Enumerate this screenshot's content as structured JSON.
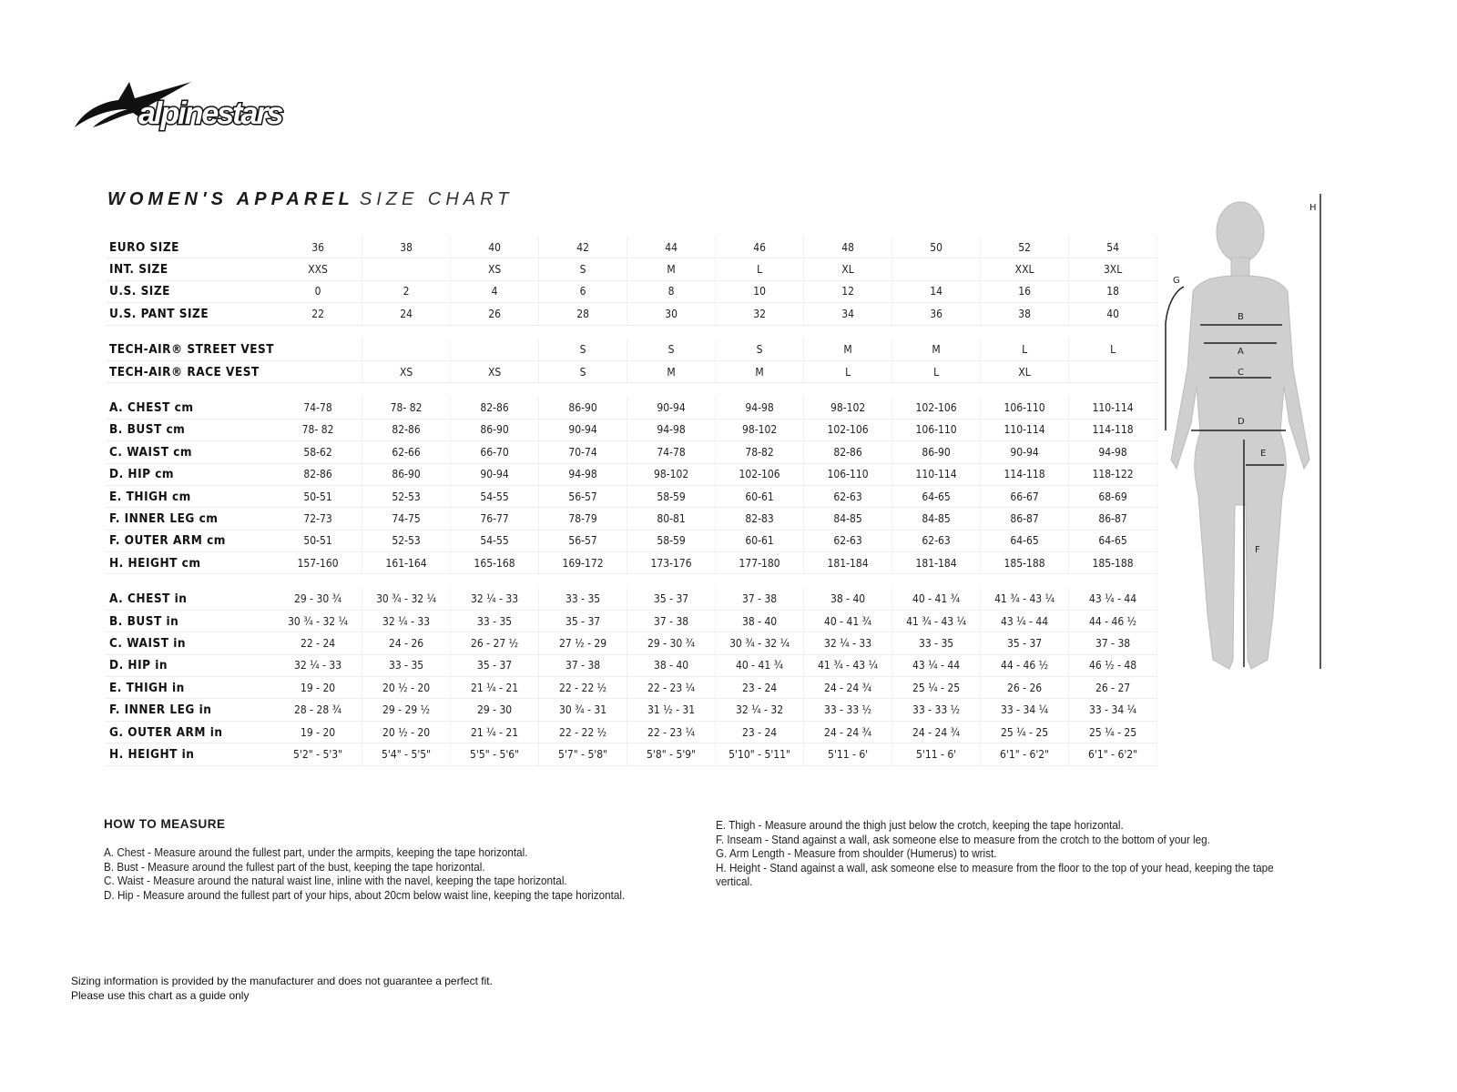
{
  "brand": "alpinestars",
  "title": {
    "bold": "WOMEN'S APPAREL",
    "light": "SIZE CHART"
  },
  "table": {
    "rows": [
      {
        "label": "EURO SIZE",
        "cells": [
          "36",
          "38",
          "40",
          "42",
          "44",
          "46",
          "48",
          "50",
          "52",
          "54"
        ]
      },
      {
        "label": "INT. SIZE",
        "cells": [
          "XXS",
          "",
          "XS",
          "S",
          "M",
          "L",
          "XL",
          "",
          "XXL",
          "3XL"
        ]
      },
      {
        "label": "U.S. SIZE",
        "cells": [
          "0",
          "2",
          "4",
          "6",
          "8",
          "10",
          "12",
          "14",
          "16",
          "18"
        ]
      },
      {
        "label": "U.S. PANT SIZE",
        "cells": [
          "22",
          "24",
          "26",
          "28",
          "30",
          "32",
          "34",
          "36",
          "38",
          "40"
        ]
      },
      null,
      {
        "label": "TECH-AIR® STREET VEST",
        "cells": [
          "",
          "",
          "",
          "S",
          "S",
          "S",
          "M",
          "M",
          "L",
          "L"
        ]
      },
      {
        "label": "TECH-AIR® RACE VEST",
        "cells": [
          "",
          "XS",
          "XS",
          "S",
          "M",
          "M",
          "L",
          "L",
          "XL",
          ""
        ]
      },
      null,
      {
        "label": "A. CHEST cm",
        "cells": [
          "74-78",
          "78- 82",
          "82-86",
          "86-90",
          "90-94",
          "94-98",
          "98-102",
          "102-106",
          "106-110",
          "110-114"
        ]
      },
      {
        "label": "B. BUST cm",
        "cells": [
          "78- 82",
          "82-86",
          "86-90",
          "90-94",
          "94-98",
          "98-102",
          "102-106",
          "106-110",
          "110-114",
          "114-118"
        ]
      },
      {
        "label": "C. WAIST cm",
        "cells": [
          "58-62",
          "62-66",
          "66-70",
          "70-74",
          "74-78",
          "78-82",
          "82-86",
          "86-90",
          "90-94",
          "94-98"
        ]
      },
      {
        "label": "D. HIP cm",
        "cells": [
          "82-86",
          "86-90",
          "90-94",
          "94-98",
          "98-102",
          "102-106",
          "106-110",
          "110-114",
          "114-118",
          "118-122"
        ]
      },
      {
        "label": "E. THIGH cm",
        "cells": [
          "50-51",
          "52-53",
          "54-55",
          "56-57",
          "58-59",
          "60-61",
          "62-63",
          "64-65",
          "66-67",
          "68-69"
        ]
      },
      {
        "label": "F. INNER LEG cm",
        "cells": [
          "72-73",
          "74-75",
          "76-77",
          "78-79",
          "80-81",
          "82-83",
          "84-85",
          "84-85",
          "86-87",
          "86-87"
        ]
      },
      {
        "label": "F. OUTER ARM cm",
        "cells": [
          "50-51",
          "52-53",
          "54-55",
          "56-57",
          "58-59",
          "60-61",
          "62-63",
          "62-63",
          "64-65",
          "64-65"
        ]
      },
      {
        "label": "H. HEIGHT cm",
        "cells": [
          "157-160",
          "161-164",
          "165-168",
          "169-172",
          "173-176",
          "177-180",
          "181-184",
          "181-184",
          "185-188",
          "185-188"
        ]
      },
      null,
      {
        "label": "A. CHEST in",
        "cells": [
          "29 - 30 ¾",
          "30 ¾ - 32 ¼",
          "32 ¼ - 33",
          "33 - 35",
          "35 - 37",
          "37 - 38",
          "38 - 40",
          "40 - 41 ¾",
          "41 ¾ - 43 ¼",
          "43 ¼ - 44"
        ]
      },
      {
        "label": "B. BUST in",
        "cells": [
          "30 ¾ - 32 ¼",
          "32 ¼ - 33",
          "33 - 35",
          "35 - 37",
          "37 - 38",
          "38 - 40",
          "40 - 41 ¾",
          "41 ¾ - 43 ¼",
          "43 ¼ - 44",
          "44 - 46 ½"
        ]
      },
      {
        "label": "C. WAIST in",
        "cells": [
          "22 - 24",
          "24 - 26",
          "26 - 27 ½",
          "27 ½ - 29",
          "29 - 30 ¾",
          "30 ¾ - 32 ¼",
          "32 ¼ - 33",
          "33 - 35",
          "35 - 37",
          "37 - 38"
        ]
      },
      {
        "label": "D. HIP in",
        "cells": [
          "32 ¼ - 33",
          "33 - 35",
          "35 - 37",
          "37 - 38",
          "38 - 40",
          "40 - 41 ¾",
          "41 ¾ - 43 ¼",
          "43 ¼ - 44",
          "44 - 46 ½",
          "46 ½ - 48"
        ]
      },
      {
        "label": "E. THIGH in",
        "cells": [
          "19 - 20",
          "20 ½ - 20",
          "21 ¼ - 21",
          "22 - 22 ½",
          "22 - 23 ¼",
          "23 - 24",
          "24 - 24 ¾",
          "25 ¼ - 25",
          "26 - 26",
          "26 - 27"
        ]
      },
      {
        "label": "F. INNER LEG in",
        "cells": [
          "28 - 28 ¾",
          "29 - 29 ½",
          "29 - 30",
          "30 ¾ - 31",
          "31 ½ - 31",
          "32 ¼ - 32",
          "33 - 33 ½",
          "33 - 33 ½",
          "33 - 34 ¼",
          "33 - 34 ¼"
        ]
      },
      {
        "label": "G. OUTER ARM in",
        "cells": [
          "19 - 20",
          "20 ½ - 20",
          "21 ¼ - 21",
          "22 - 22 ½",
          "22 - 23 ¼",
          "23 - 24",
          "24 - 24 ¾",
          "24 - 24 ¾",
          "25 ¼ - 25",
          "25 ¼ - 25"
        ]
      },
      {
        "label": "H. HEIGHT in",
        "cells": [
          "5'2\" - 5'3\"",
          "5'4\" - 5'5\"",
          "5'5\" - 5'6\"",
          "5'7\" - 5'8\"",
          "5'8\" - 5'9\"",
          "5'10\" - 5'11\"",
          "5'11 - 6'",
          "5'11 - 6'",
          "6'1\" - 6'2\"",
          "6'1\" - 6'2\""
        ]
      }
    ]
  },
  "how_to_measure": {
    "heading": "HOW TO MEASURE",
    "left": [
      "A. Chest - Measure around the fullest part, under the armpits, keeping the tape horizontal.",
      "B. Bust - Measure around the fullest part of the bust, keeping the tape horizontal.",
      "C. Waist - Measure around the natural waist line, inline with the navel, keeping the tape horizontal.",
      "D. Hip - Measure around the fullest part of your hips, about 20cm below waist line, keeping the tape horizontal."
    ],
    "right": [
      "E. Thigh - Measure around the thigh just below the crotch, keeping the tape horizontal.",
      "F. Inseam - Stand against a wall, ask someone else to measure from the crotch to the bottom of your leg.",
      "G. Arm Length - Measure from shoulder (Humerus) to wrist.",
      "H. Height - Stand against a wall, ask someone else to measure from the floor to the top of your head, keeping the tape vertical."
    ]
  },
  "figure_labels": {
    "a": "A",
    "b": "B",
    "c": "C",
    "d": "D",
    "e": "E",
    "f": "F",
    "g": "G",
    "h": "H"
  },
  "footer": {
    "line1": "Sizing information is provided by the manufacturer and does not guarantee a perfect fit.",
    "line2": "Please use this chart as a guide only"
  }
}
